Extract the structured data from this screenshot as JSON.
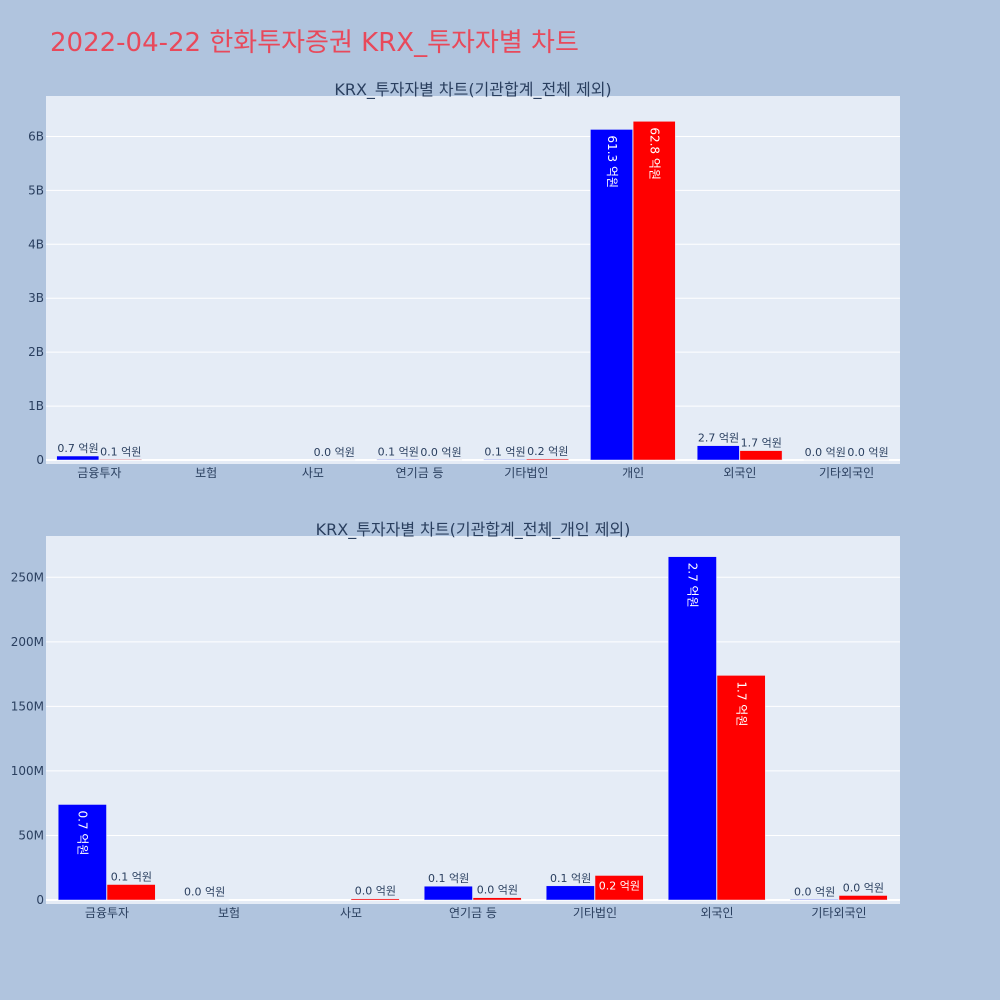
{
  "page": {
    "title": "2022-04-22 한화투자증권 KRX_투자자별 차트"
  },
  "colors": {
    "series_a": "#0000ff",
    "series_b": "#ff0000",
    "plot_bg": "#e5ecf6",
    "page_bg": "#b0c4de",
    "title": "#e8495b"
  },
  "chart_data": [
    {
      "type": "bar",
      "title": "KRX_투자자별 차트(기관합계_전체 제외)",
      "categories": [
        "금융투자",
        "보험",
        "사모",
        "연기금 등",
        "기타법인",
        "개인",
        "외국인",
        "기타외국인"
      ],
      "ylim": [
        0,
        6.75
      ],
      "yticks": [
        0,
        1,
        2,
        3,
        4,
        5,
        6
      ],
      "ytick_labels": [
        "0",
        "1B",
        "2B",
        "3B",
        "4B",
        "5B",
        "6B"
      ],
      "grid": true,
      "series": [
        {
          "color": "#0000ff",
          "values": [
            0.074,
            0,
            0,
            0.011,
            0.011,
            6.13,
            0.266,
            0.001
          ],
          "labels": [
            "0.7 억원",
            "",
            "",
            "0.1 억원",
            "0.1 억원",
            "61.3 억원",
            "2.7 억원",
            "0.0 억원"
          ]
        },
        {
          "color": "#ff0000",
          "values": [
            0.012,
            0,
            0.001,
            0.002,
            0.019,
            6.28,
            0.174,
            0.003
          ],
          "labels": [
            "0.1 억원",
            "",
            "0.0 억원",
            "0.0 억원",
            "0.2 억원",
            "62.8 억원",
            "1.7 억원",
            "0.0 억원"
          ]
        }
      ]
    },
    {
      "type": "bar",
      "title": "KRX_투자자별 차트(기관합계_전체_개인 제외)",
      "categories": [
        "금융투자",
        "보험",
        "사모",
        "연기금 등",
        "기타법인",
        "외국인",
        "기타외국인"
      ],
      "ylim": [
        0,
        282
      ],
      "yticks": [
        0,
        50,
        100,
        150,
        200,
        250
      ],
      "ytick_labels": [
        "0",
        "50M",
        "100M",
        "150M",
        "200M",
        "250M"
      ],
      "grid": true,
      "series": [
        {
          "color": "#0000ff",
          "values": [
            74,
            0.2,
            0,
            10.7,
            11,
            266,
            0.5
          ],
          "labels": [
            "0.7 억원",
            "0.0 억원",
            "",
            "0.1 억원",
            "0.1 억원",
            "2.7 억원",
            "0.0 억원"
          ]
        },
        {
          "color": "#ff0000",
          "values": [
            12,
            0,
            1,
            1.8,
            19,
            174,
            3.5
          ],
          "labels": [
            "0.1 억원",
            "",
            "0.0 억원",
            "0.0 억원",
            "0.2 억원",
            "1.7 억원",
            "0.0 억원"
          ]
        }
      ]
    }
  ]
}
